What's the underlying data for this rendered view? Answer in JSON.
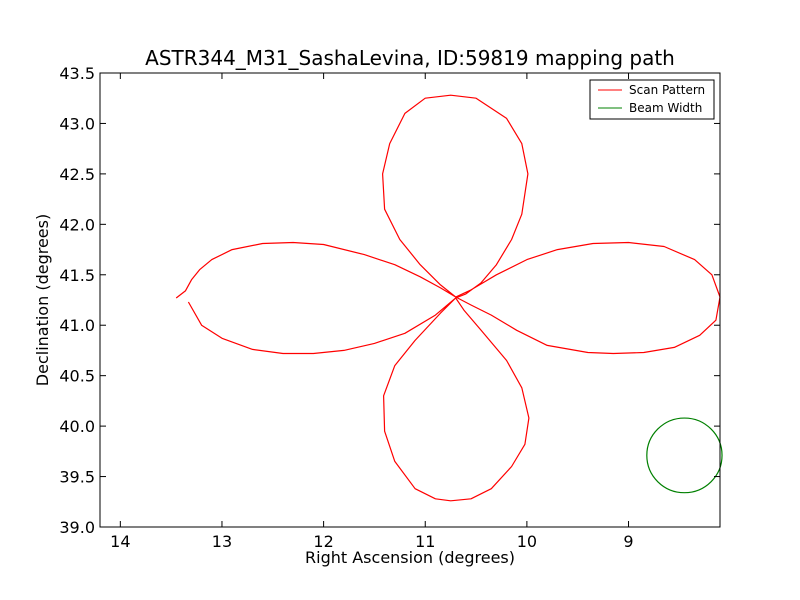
{
  "chart_data": {
    "type": "line",
    "title": "ASTR344_M31_SashaLevina, ID:59819 mapping path",
    "xlabel": "Right Ascension (degrees)",
    "ylabel": "Declination (degrees)",
    "xlim": [
      14.2,
      8.1
    ],
    "ylim": [
      39.0,
      43.5
    ],
    "x_reversed": true,
    "xticks": [
      14,
      13,
      12,
      11,
      10,
      9
    ],
    "yticks": [
      39.0,
      39.5,
      40.0,
      40.5,
      41.0,
      41.5,
      42.0,
      42.5,
      43.0,
      43.5
    ],
    "xtick_labels": [
      "14",
      "13",
      "12",
      "11",
      "10",
      "9"
    ],
    "ytick_labels": [
      "39.0",
      "39.5",
      "40.0",
      "40.5",
      "41.0",
      "41.5",
      "42.0",
      "42.5",
      "43.0",
      "43.5"
    ],
    "grid": false,
    "legend_position": "top-right",
    "series": [
      {
        "name": "Scan Pattern",
        "color": "#ff0000",
        "x": [
          13.45,
          13.36,
          13.3,
          13.22,
          13.1,
          12.9,
          12.6,
          12.3,
          12.0,
          11.6,
          11.3,
          11.05,
          10.85,
          10.7,
          10.55,
          10.35,
          10.1,
          9.8,
          9.4,
          9.15,
          8.85,
          8.55,
          8.3,
          8.14,
          8.1,
          8.18,
          8.35,
          8.65,
          9.0,
          9.35,
          9.7,
          10.0,
          10.3,
          10.55,
          10.7,
          10.85,
          11.05,
          11.25,
          11.4,
          11.42,
          11.35,
          11.2,
          11.0,
          10.75,
          10.5,
          10.2,
          10.05,
          9.99,
          10.05,
          10.15,
          10.3,
          10.45,
          10.6,
          10.7,
          10.85,
          11.1,
          11.3,
          11.41,
          11.4,
          11.3,
          11.1,
          10.9,
          10.75,
          10.55,
          10.35,
          10.15,
          10.02,
          9.98,
          10.05,
          10.2,
          10.45,
          10.62,
          10.7,
          10.9,
          11.2,
          11.5,
          11.8,
          12.1,
          12.4,
          12.7,
          13.0,
          13.2,
          13.33
        ],
        "y": [
          41.27,
          41.34,
          41.45,
          41.55,
          41.65,
          41.75,
          41.81,
          41.82,
          41.8,
          41.7,
          41.6,
          41.48,
          41.37,
          41.28,
          41.2,
          41.1,
          40.95,
          40.8,
          40.73,
          40.72,
          40.73,
          40.78,
          40.9,
          41.05,
          41.28,
          41.5,
          41.65,
          41.78,
          41.82,
          41.81,
          41.75,
          41.65,
          41.5,
          41.35,
          41.28,
          41.4,
          41.6,
          41.85,
          42.15,
          42.5,
          42.8,
          43.1,
          43.25,
          43.28,
          43.25,
          43.05,
          42.8,
          42.5,
          42.1,
          41.85,
          41.6,
          41.42,
          41.31,
          41.27,
          41.12,
          40.85,
          40.6,
          40.3,
          39.95,
          39.65,
          39.38,
          39.28,
          39.26,
          39.28,
          39.38,
          39.6,
          39.82,
          40.08,
          40.38,
          40.65,
          40.95,
          41.15,
          41.27,
          41.1,
          40.92,
          40.82,
          40.75,
          40.72,
          40.72,
          40.76,
          40.87,
          41.0,
          41.23
        ]
      },
      {
        "name": "Beam Width",
        "color": "#008000",
        "type": "circle",
        "center_x": 8.45,
        "center_y": 39.71,
        "radius_x": 0.37,
        "radius_y": 0.37
      }
    ]
  }
}
